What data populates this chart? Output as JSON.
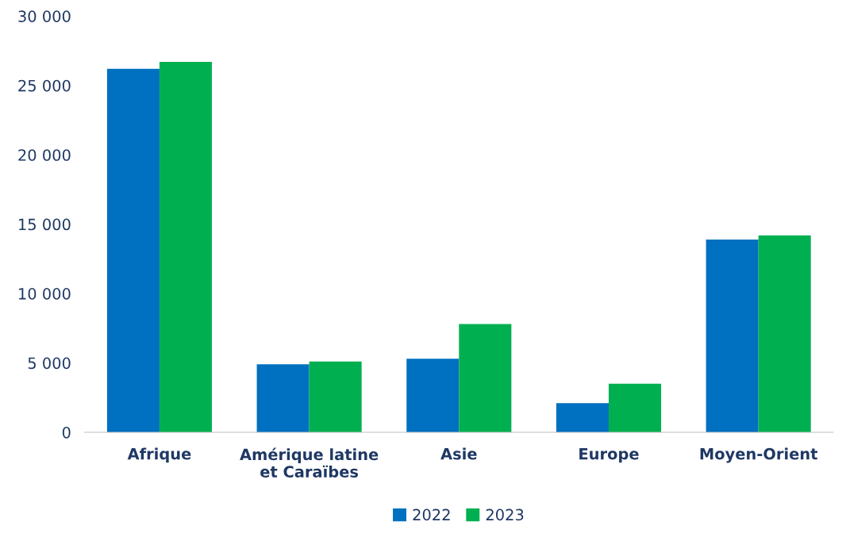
{
  "chart_data": {
    "type": "bar",
    "categories": [
      "Afrique",
      "Amérique latine\net Caraïbes",
      "Asie",
      "Europe",
      "Moyen-Orient"
    ],
    "series": [
      {
        "name": "2022",
        "color": "#0070c0",
        "values": [
          26200,
          4900,
          5300,
          2100,
          13900
        ]
      },
      {
        "name": "2023",
        "color": "#00b050",
        "values": [
          26700,
          5100,
          7800,
          3500,
          14200
        ]
      }
    ],
    "ylim": [
      0,
      30000
    ],
    "yticks": [
      0,
      {
        "value": 5000,
        "label": "5 000"
      },
      {
        "value": 10000,
        "label": "10 000"
      },
      {
        "value": 15000,
        "label": "15 000"
      },
      {
        "value": 20000,
        "label": "20 000"
      },
      {
        "value": 25000,
        "label": "25 000"
      },
      {
        "value": 30000,
        "label": "30 000"
      }
    ],
    "grid": false,
    "legend": "bottom"
  }
}
